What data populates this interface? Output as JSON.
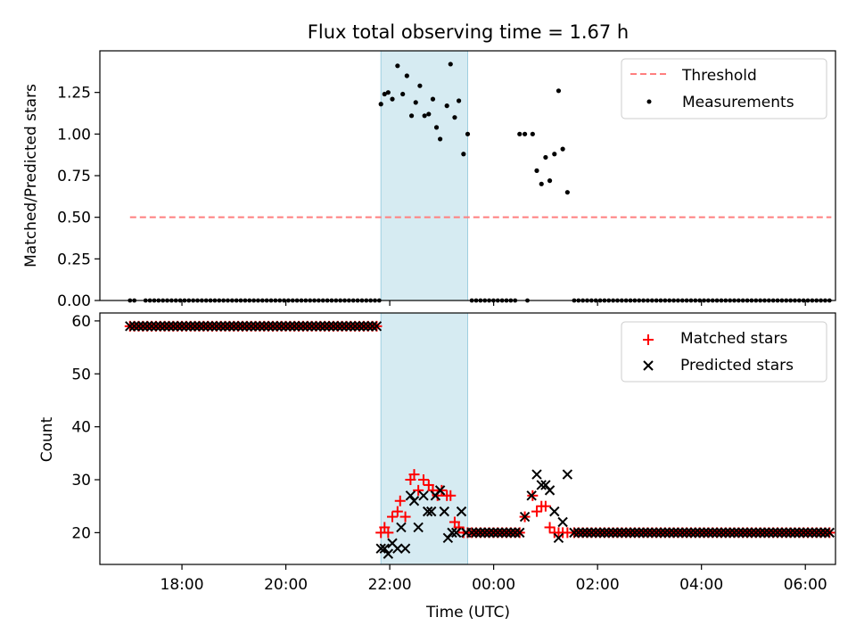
{
  "chart_data": [
    {
      "type": "scatter",
      "title": "Flux total observing time = 1.67 h",
      "xlabel": "",
      "ylabel": "Matched/Predicted stars",
      "xlim_hours": [
        16.42,
        30.58
      ],
      "ylim": [
        0,
        1.5
      ],
      "y_ticks": [
        0.0,
        0.25,
        0.5,
        0.75,
        1.0,
        1.25
      ],
      "y_tick_labels": [
        "0.00",
        "0.25",
        "0.50",
        "0.75",
        "1.00",
        "1.25"
      ],
      "observing_window_hours": [
        21.83,
        23.5
      ],
      "legend": {
        "position": "upper right",
        "entries": [
          "Threshold",
          "Measurements"
        ]
      },
      "threshold": {
        "name": "Threshold",
        "value": 0.5,
        "x_range_hours": [
          17.0,
          30.5
        ]
      },
      "series": [
        {
          "name": "Measurements",
          "points_hours": [
            [
              21.83,
              1.18
            ],
            [
              21.9,
              1.24
            ],
            [
              21.97,
              1.25
            ],
            [
              22.05,
              1.21
            ],
            [
              22.15,
              1.41
            ],
            [
              22.25,
              1.24
            ],
            [
              22.33,
              1.35
            ],
            [
              22.42,
              1.11
            ],
            [
              22.5,
              1.19
            ],
            [
              22.58,
              1.29
            ],
            [
              22.67,
              1.11
            ],
            [
              22.75,
              1.12
            ],
            [
              22.83,
              1.21
            ],
            [
              22.9,
              1.04
            ],
            [
              22.97,
              0.97
            ],
            [
              23.1,
              1.17
            ],
            [
              23.17,
              1.42
            ],
            [
              23.25,
              1.1
            ],
            [
              23.33,
              1.2
            ],
            [
              23.42,
              0.88
            ],
            [
              23.5,
              1.0
            ],
            [
              24.5,
              1.0
            ],
            [
              24.6,
              1.0
            ],
            [
              24.75,
              1.0
            ],
            [
              24.83,
              0.78
            ],
            [
              24.92,
              0.7
            ],
            [
              25.0,
              0.86
            ],
            [
              25.08,
              0.72
            ],
            [
              25.17,
              0.88
            ],
            [
              25.25,
              1.26
            ],
            [
              25.33,
              0.91
            ],
            [
              25.42,
              0.65
            ]
          ],
          "zero_value_ranges_hours": [
            [
              17.0,
              17.15
            ],
            [
              17.3,
              21.83
            ],
            [
              23.58,
              24.45
            ],
            [
              24.65,
              24.7
            ],
            [
              25.55,
              30.5
            ]
          ]
        }
      ]
    },
    {
      "type": "scatter",
      "title": "",
      "xlabel": "Time (UTC)",
      "ylabel": "Count",
      "xlim_hours": [
        16.42,
        30.58
      ],
      "ylim": [
        14,
        61.5
      ],
      "y_ticks": [
        20,
        30,
        40,
        50,
        60
      ],
      "y_tick_labels": [
        "20",
        "30",
        "40",
        "50",
        "60"
      ],
      "x_ticks_hours": [
        18,
        20,
        22,
        24,
        26,
        28,
        30
      ],
      "x_tick_labels": [
        "18:00",
        "20:00",
        "22:00",
        "00:00",
        "02:00",
        "04:00",
        "06:00"
      ],
      "observing_window_hours": [
        21.83,
        23.5
      ],
      "legend": {
        "position": "upper right",
        "entries": [
          "Matched stars",
          "Predicted stars"
        ]
      },
      "series": [
        {
          "name": "Matched stars",
          "marker": "plus",
          "color": "#ff0000",
          "constant_runs": [
            {
              "x_range_hours": [
                17.0,
                21.83
              ],
              "value": 59
            },
            {
              "x_range_hours": [
                23.58,
                24.45
              ],
              "value": 20
            },
            {
              "x_range_hours": [
                25.55,
                30.5
              ],
              "value": 20
            }
          ],
          "points_hours": [
            [
              21.83,
              20
            ],
            [
              21.9,
              21
            ],
            [
              21.97,
              20
            ],
            [
              22.05,
              23
            ],
            [
              22.15,
              24
            ],
            [
              22.2,
              26
            ],
            [
              22.3,
              23
            ],
            [
              22.4,
              30
            ],
            [
              22.47,
              31
            ],
            [
              22.55,
              28
            ],
            [
              22.65,
              30
            ],
            [
              22.75,
              29
            ],
            [
              22.83,
              28
            ],
            [
              22.92,
              27
            ],
            [
              23.0,
              28
            ],
            [
              23.1,
              27
            ],
            [
              23.17,
              27
            ],
            [
              23.25,
              22
            ],
            [
              23.33,
              21
            ],
            [
              23.42,
              20
            ],
            [
              23.5,
              20
            ],
            [
              24.5,
              20
            ],
            [
              24.6,
              23
            ],
            [
              24.75,
              27
            ],
            [
              24.83,
              24
            ],
            [
              24.92,
              25
            ],
            [
              25.0,
              25
            ],
            [
              25.08,
              21
            ],
            [
              25.17,
              20
            ],
            [
              25.25,
              20
            ],
            [
              25.33,
              20
            ],
            [
              25.42,
              20
            ]
          ]
        },
        {
          "name": "Predicted stars",
          "marker": "x",
          "color": "#000000",
          "points_hours": [
            [
              21.83,
              17
            ],
            [
              21.9,
              17
            ],
            [
              21.97,
              16
            ],
            [
              22.05,
              18
            ],
            [
              22.15,
              17
            ],
            [
              22.22,
              21
            ],
            [
              22.3,
              17
            ],
            [
              22.4,
              27
            ],
            [
              22.47,
              26
            ],
            [
              22.55,
              21
            ],
            [
              22.65,
              27
            ],
            [
              22.73,
              24
            ],
            [
              22.8,
              24
            ],
            [
              22.88,
              27
            ],
            [
              22.97,
              28
            ],
            [
              23.05,
              24
            ],
            [
              23.12,
              19
            ],
            [
              23.2,
              20
            ],
            [
              23.28,
              20
            ],
            [
              23.38,
              24
            ],
            [
              23.47,
              20
            ],
            [
              24.5,
              20
            ],
            [
              24.6,
              23
            ],
            [
              24.73,
              27
            ],
            [
              24.83,
              31
            ],
            [
              24.92,
              29
            ],
            [
              25.0,
              29
            ],
            [
              25.08,
              28
            ],
            [
              25.17,
              24
            ],
            [
              25.25,
              19
            ],
            [
              25.33,
              22
            ],
            [
              25.42,
              31
            ]
          ]
        }
      ]
    }
  ]
}
